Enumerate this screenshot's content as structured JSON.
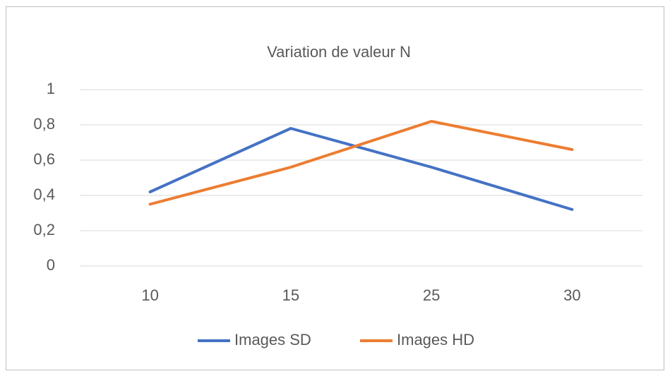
{
  "chart_data": {
    "type": "line",
    "title": "Variation de  valeur N",
    "categories": [
      "10",
      "15",
      "25",
      "30"
    ],
    "series": [
      {
        "name": "Images SD",
        "color": "#4472c4",
        "values": [
          0.42,
          0.78,
          0.56,
          0.32
        ]
      },
      {
        "name": "Images HD",
        "color": "#ed7d31",
        "values": [
          0.35,
          0.56,
          0.82,
          0.66
        ]
      }
    ],
    "ylim": [
      0,
      1
    ],
    "yticks": [
      0,
      {
        "value": 0.2,
        "label": "0,2"
      },
      {
        "value": 0.4,
        "label": "0,4"
      },
      {
        "value": 0.6,
        "label": "0,6"
      },
      {
        "value": 0.8,
        "label": "0,8"
      },
      1
    ],
    "grid": true,
    "legend": "bottom"
  }
}
